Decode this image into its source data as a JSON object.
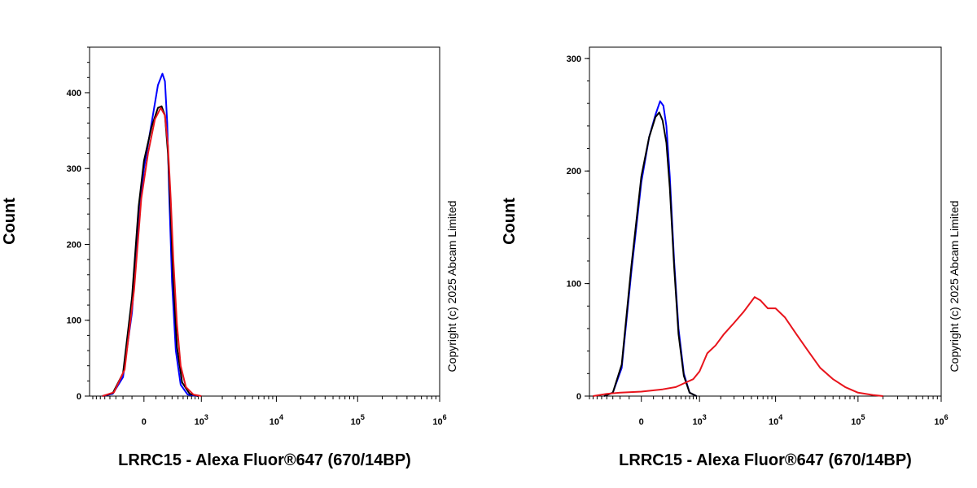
{
  "chart_data": [
    {
      "type": "line",
      "xlabel": "LRRC15 - Alexa Fluor®647 (670/14BP)",
      "ylabel": "Count",
      "x_scale": "biexponential",
      "ylim": [
        0,
        460
      ],
      "y_ticks": [
        0,
        100,
        200,
        300,
        400
      ],
      "x_ticks": [
        {
          "value": "0",
          "base": "0",
          "exp": ""
        },
        {
          "value": "1000",
          "base": "10",
          "exp": "3"
        },
        {
          "value": "10000",
          "base": "10",
          "exp": "4"
        },
        {
          "value": "100000",
          "base": "10",
          "exp": "5"
        },
        {
          "value": "1000000",
          "base": "10",
          "exp": "6"
        }
      ],
      "copyright": "Copyright (c) 2025 Abcam Limited",
      "series": [
        {
          "color": "#0000ff",
          "x": [
            -550,
            -350,
            -200,
            -100,
            -40,
            0,
            60,
            120,
            170,
            200,
            230,
            260,
            300,
            360,
            450,
            600,
            900
          ],
          "y": [
            0,
            3,
            25,
            110,
            230,
            300,
            360,
            410,
            425,
            415,
            360,
            260,
            150,
            60,
            15,
            2,
            0
          ]
        },
        {
          "color": "#000000",
          "x": [
            -550,
            -350,
            -200,
            -100,
            -40,
            0,
            60,
            120,
            160,
            200,
            240,
            280,
            320,
            380,
            480,
            650,
            900
          ],
          "y": [
            0,
            4,
            30,
            130,
            250,
            310,
            355,
            380,
            382,
            370,
            320,
            240,
            150,
            65,
            18,
            3,
            0
          ]
        },
        {
          "color": "#e8141c",
          "x": [
            -550,
            -330,
            -180,
            -80,
            -20,
            30,
            90,
            150,
            200,
            240,
            280,
            320,
            380,
            450,
            560,
            750,
            1000
          ],
          "y": [
            0,
            5,
            35,
            140,
            260,
            320,
            365,
            380,
            370,
            330,
            260,
            180,
            95,
            40,
            12,
            2,
            0
          ]
        }
      ]
    },
    {
      "type": "line",
      "xlabel": "LRRC15 - Alexa Fluor®647 (670/14BP)",
      "ylabel": "Count",
      "x_scale": "biexponential",
      "ylim": [
        0,
        310
      ],
      "y_ticks": [
        0,
        100,
        200,
        300
      ],
      "x_ticks": [
        {
          "value": "0",
          "base": "0",
          "exp": ""
        },
        {
          "value": "1000",
          "base": "10",
          "exp": "3"
        },
        {
          "value": "10000",
          "base": "10",
          "exp": "4"
        },
        {
          "value": "100000",
          "base": "10",
          "exp": "5"
        },
        {
          "value": "1000000",
          "base": "10",
          "exp": "6"
        }
      ],
      "copyright": "Copyright (c) 2025 Abcam Limited",
      "series": [
        {
          "color": "#0000ff",
          "x": [
            -450,
            -300,
            -180,
            -80,
            0,
            60,
            120,
            170,
            210,
            250,
            300,
            370,
            450,
            560,
            700,
            900
          ],
          "y": [
            0,
            3,
            25,
            110,
            190,
            230,
            250,
            262,
            258,
            240,
            195,
            120,
            60,
            20,
            3,
            0
          ]
        },
        {
          "color": "#000000",
          "x": [
            -450,
            -300,
            -180,
            -80,
            0,
            60,
            120,
            160,
            200,
            250,
            300,
            370,
            450,
            560,
            700,
            900
          ],
          "y": [
            0,
            3,
            28,
            115,
            195,
            230,
            248,
            252,
            245,
            225,
            185,
            115,
            55,
            18,
            3,
            0
          ]
        },
        {
          "color": "#e8141c",
          "x": [
            -700,
            -400,
            -200,
            0,
            200,
            400,
            600,
            800,
            1000,
            1300,
            1700,
            2200,
            3000,
            4000,
            5500,
            6500,
            8000,
            10000,
            13000,
            18000,
            25000,
            35000,
            50000,
            70000,
            100000,
            150000,
            200000
          ],
          "y": [
            0,
            2,
            3,
            4,
            6,
            8,
            12,
            15,
            22,
            38,
            45,
            55,
            65,
            75,
            88,
            85,
            78,
            78,
            70,
            55,
            40,
            25,
            15,
            8,
            3,
            1,
            0
          ]
        }
      ]
    }
  ]
}
